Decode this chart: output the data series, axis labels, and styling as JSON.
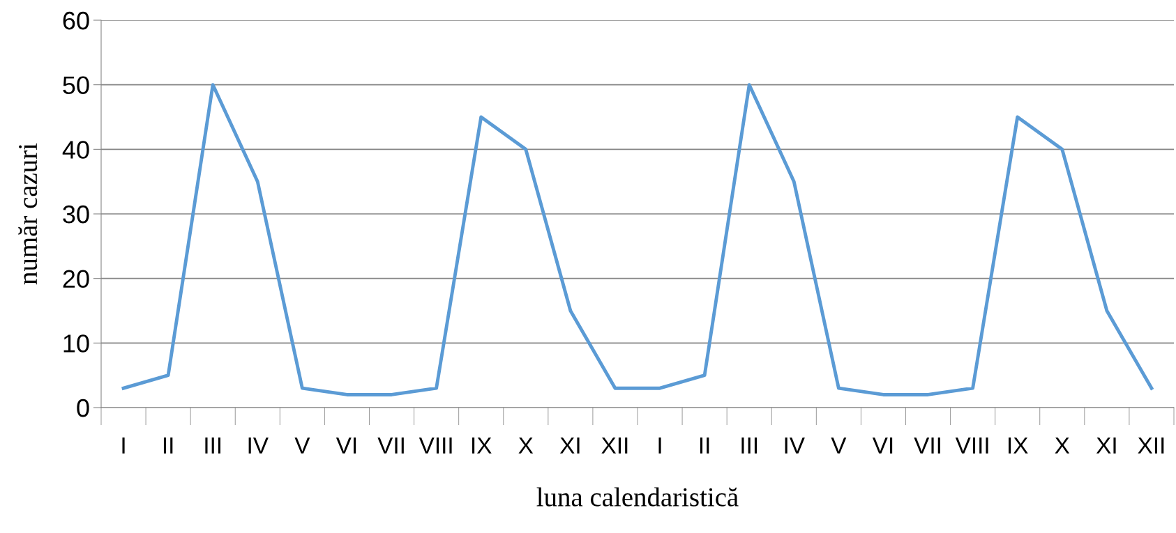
{
  "chart_data": {
    "type": "line",
    "xlabel": "luna calendaristică",
    "ylabel": "număr cazuri",
    "categories": [
      "I",
      "II",
      "III",
      "IV",
      "V",
      "VI",
      "VII",
      "VIII",
      "IX",
      "X",
      "XI",
      "XII",
      "I",
      "II",
      "III",
      "IV",
      "V",
      "VI",
      "VII",
      "VIII",
      "IX",
      "X",
      "XI",
      "XII"
    ],
    "series": [
      {
        "color": "#5b9bd5",
        "values": [
          3,
          5,
          50,
          35,
          3,
          2,
          2,
          3,
          45,
          40,
          15,
          3,
          3,
          5,
          50,
          35,
          3,
          2,
          2,
          3,
          45,
          40,
          15,
          3
        ]
      }
    ],
    "ylim": [
      0,
      60
    ],
    "yticks": [
      0,
      10,
      20,
      30,
      40,
      50,
      60
    ],
    "grid": "y",
    "marker": "none",
    "line_style": "solid",
    "legend": false
  }
}
